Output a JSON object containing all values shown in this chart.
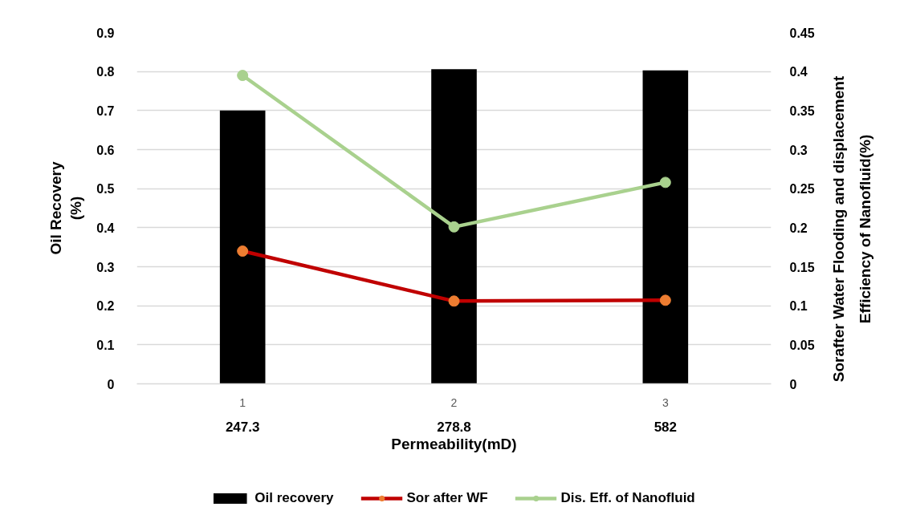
{
  "chart_data": {
    "type": "bar",
    "categories": [
      "247.3",
      "278.8",
      "582"
    ],
    "xlabel": "Permeability(mD)",
    "ylabel": "Oil Recovery\n(%)",
    "y2label": "Sorafter Water Flooding and displacement\nEfficiency of Nanofluid(%)",
    "annotations": [
      "1",
      "2",
      "3"
    ],
    "series": [
      {
        "name": "Oil recovery",
        "color": "#000000",
        "values": [
          0.7,
          0.806,
          0.803
        ]
      },
      {
        "name": "Sor after WF",
        "type": "line",
        "axis": "y2",
        "color": "#c00000",
        "colors": [
          "#ed7d31",
          "#ed7d31",
          "#ed7d31"
        ],
        "values": [
          0.17,
          0.106,
          0.107
        ]
      },
      {
        "name": "Dis. Eff. of Nanofluid",
        "type": "line",
        "axis": "y2",
        "color": "#a9d18e",
        "colors": [
          "#a9d18e",
          "#a9d18e",
          "#a9d18e"
        ],
        "values": [
          0.395,
          0.201,
          0.258
        ]
      }
    ],
    "ylim": [
      0,
      0.9
    ],
    "yticks": [
      0,
      0.1,
      0.2,
      0.3,
      0.4,
      0.5,
      0.6,
      0.7,
      0.8,
      0.9
    ],
    "y2lim": [
      0,
      0.45
    ],
    "y2ticks": [
      0,
      0.05,
      0.1,
      0.15,
      0.2,
      0.25,
      0.3,
      0.35,
      0.4,
      0.45
    ],
    "grid": "y",
    "legend": "bottom",
    "marker": "circle"
  }
}
